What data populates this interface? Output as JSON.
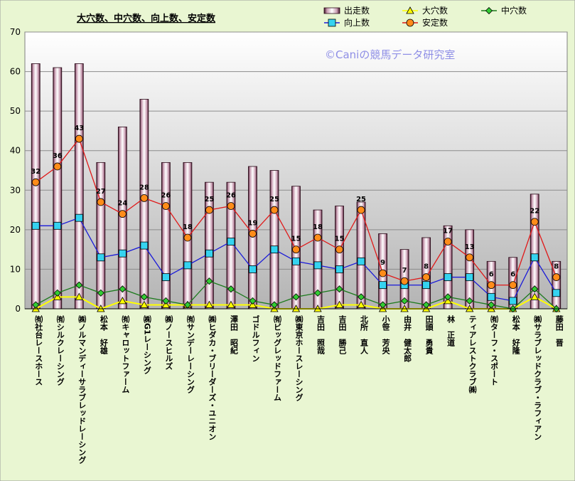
{
  "chart_data": {
    "type": "bar",
    "title": "大穴数、中穴数、向上数、安定数",
    "watermark": "©Caniの競馬データ研究室",
    "ylim": [
      0,
      70
    ],
    "yticks": [
      0,
      10,
      20,
      30,
      40,
      50,
      60,
      70
    ],
    "grid": true,
    "legend_position": "top-right",
    "categories": [
      "㈲社台レースホース",
      "㈲シルクレーシング",
      "㈱ノルマンディーサラブレッドレーシング",
      "松本　好雄",
      "㈲キャロットファーム",
      "㈱G1レーシング",
      "㈱ノースヒルズ",
      "㈲サンデーレーシング",
      "㈱ヒダカ・ブリーダーズ・ユニオン",
      "澤田　昭紀",
      "ゴドルフィン",
      "㈲ビッグレッドファーム",
      "㈱東京ホースレーシング",
      "吉田　照哉",
      "吉田　勝己",
      "北所　直人",
      "小笹　芳央",
      "由井　健太郎",
      "田頭　勇貴",
      "林　正道",
      "ティアレストクラブ㈱",
      "㈲ターフ・スポート",
      "松本　好隆",
      "㈱サラブレッドクラブ・ラフィアン",
      "藤田　晋"
    ],
    "series": [
      {
        "name": "出走数",
        "kind": "bar",
        "color": "#f2dfe8",
        "values": [
          62,
          61,
          62,
          37,
          46,
          53,
          37,
          37,
          32,
          32,
          36,
          35,
          31,
          25,
          26,
          27,
          19,
          15,
          18,
          21,
          20,
          12,
          13,
          29,
          12
        ]
      },
      {
        "name": "大穴数",
        "kind": "line",
        "color": "#ffff00",
        "marker": "triangle",
        "values": [
          0,
          3,
          3,
          0,
          2,
          1,
          1,
          1,
          1,
          1,
          1,
          0,
          0,
          0,
          1,
          1,
          0,
          0,
          0,
          2,
          0,
          0,
          0,
          3,
          0
        ]
      },
      {
        "name": "中穴数",
        "kind": "line",
        "color": "#1d7a1d",
        "marker": "diamond",
        "values": [
          1,
          4,
          6,
          4,
          5,
          3,
          2,
          1,
          7,
          5,
          2,
          1,
          3,
          4,
          5,
          3,
          1,
          2,
          1,
          3,
          2,
          1,
          0,
          5,
          0
        ]
      },
      {
        "name": "向上数",
        "kind": "line",
        "color": "#1b1bd8",
        "marker": "square",
        "values": [
          21,
          21,
          23,
          13,
          14,
          16,
          8,
          11,
          14,
          17,
          10,
          15,
          12,
          11,
          10,
          12,
          6,
          6,
          6,
          8,
          8,
          3,
          2,
          13,
          4
        ]
      },
      {
        "name": "安定数",
        "kind": "line",
        "color": "#e01818",
        "marker": "circle",
        "labels": true,
        "values": [
          32,
          36,
          43,
          27,
          24,
          28,
          26,
          18,
          25,
          26,
          19,
          25,
          15,
          18,
          15,
          25,
          9,
          7,
          8,
          17,
          13,
          6,
          6,
          22,
          8
        ]
      }
    ]
  }
}
